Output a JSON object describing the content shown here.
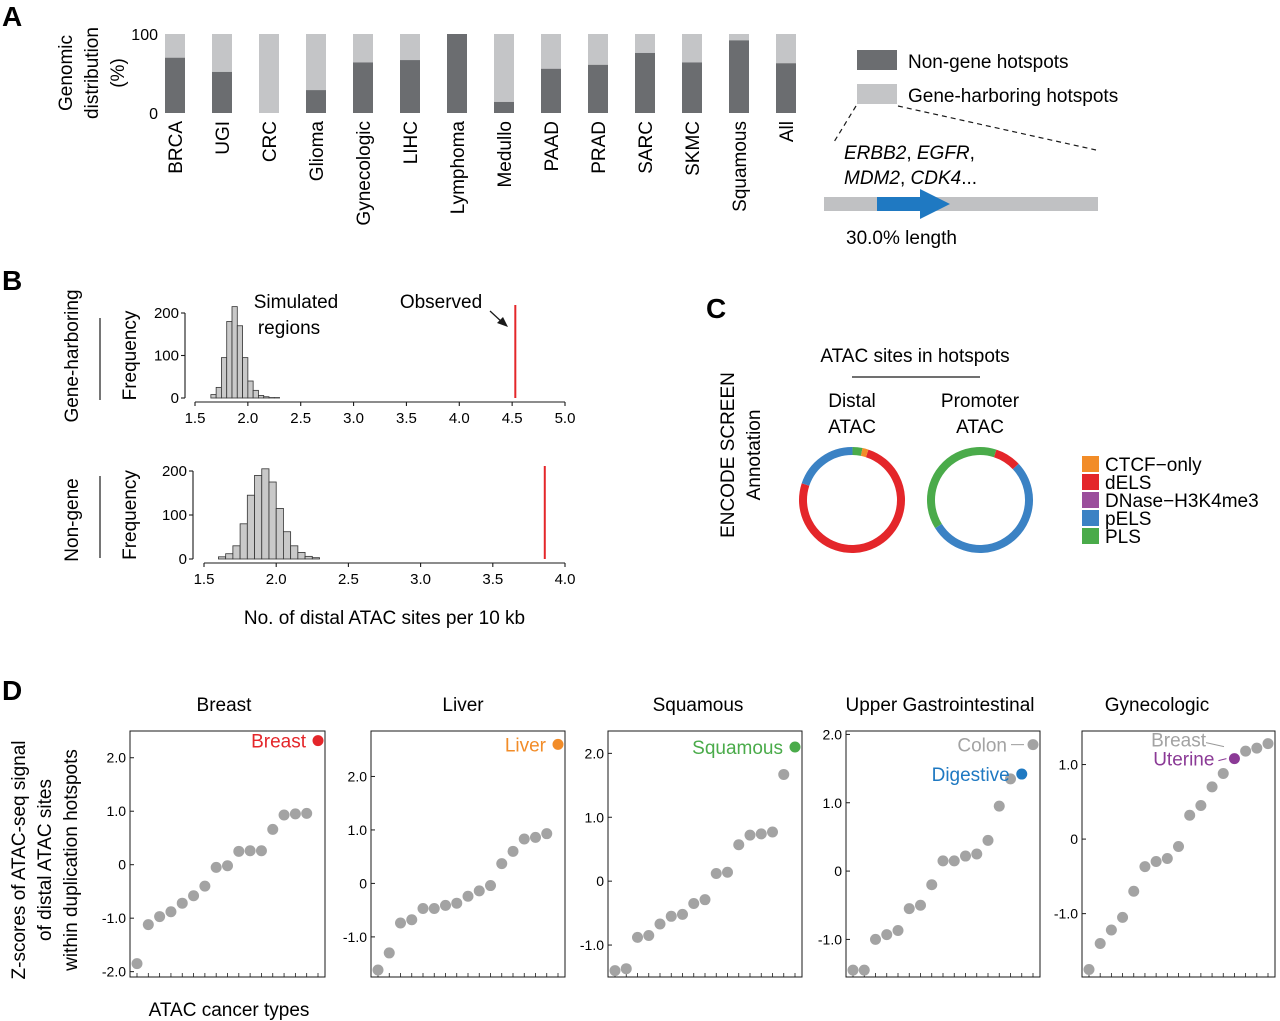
{
  "panel_labels": {
    "a": "A",
    "b": "B",
    "c": "C",
    "d": "D"
  },
  "colors": {
    "non_gene": "#6b6d70",
    "gene": "#c4c5c7",
    "hist_fill": "#c9c9c9",
    "observed": "#e4262a",
    "gene_bar_gray": "#c0c1c3",
    "gene_arrow": "#1f79c2",
    "point_gray": "#a3a3a3"
  },
  "panel_a_gene": {
    "genes_line1_parts": [
      "ERBB2",
      ", ",
      "EGFR",
      ","
    ],
    "genes_line2_parts": [
      "MDM2",
      ", ",
      "CDK4",
      "..."
    ],
    "length_label": "30.0% length"
  },
  "panel_b": {
    "row_labels": [
      "Gene-harboring",
      "Non-gene"
    ],
    "annotations": {
      "simulated_line1": "Simulated",
      "simulated_line2": "regions",
      "observed": "Observed"
    }
  },
  "panel_c": {
    "header": "ATAC sites in hotspots",
    "side_label_line1": "ENCODE SCREEN",
    "side_label_line2": "Annotation",
    "ring_titles": [
      [
        "Distal",
        "ATAC"
      ],
      [
        "Promoter",
        "ATAC"
      ]
    ]
  },
  "panel_d": {
    "ylabel_lines": [
      "Z-scores of ATAC-seq signal",
      "of distal ATAC sites",
      "within duplication hotspots"
    ],
    "xlabel": "ATAC cancer types"
  },
  "chart_data": [
    {
      "id": "A",
      "type": "bar",
      "stacked": true,
      "ylabel": "Genomic distribution (%)",
      "ylim": [
        0,
        100
      ],
      "yticks": [
        0,
        100
      ],
      "categories": [
        "BRCA",
        "UGI",
        "CRC",
        "Glioma",
        "Gynecologic",
        "LIHC",
        "Lymphoma",
        "Medullo",
        "PAAD",
        "PRAD",
        "SARC",
        "SKMC",
        "Squamous",
        "All"
      ],
      "series": [
        {
          "name": "Non-gene hotspots",
          "values": [
            70,
            52,
            0,
            29,
            64,
            67,
            100,
            14,
            56,
            61,
            76,
            64,
            92,
            63
          ]
        },
        {
          "name": "Gene-harboring hotspots",
          "values": [
            30,
            48,
            100,
            71,
            36,
            33,
            0,
            86,
            44,
            39,
            24,
            36,
            8,
            37
          ]
        }
      ],
      "legend_position": "right"
    },
    {
      "id": "B-gene",
      "type": "bar",
      "subtype": "histogram",
      "ylabel": "Frequency",
      "xlim": [
        1.5,
        5.0
      ],
      "xticks": [
        "1.5",
        "2.0",
        "2.5",
        "3.0",
        "3.5",
        "4.0",
        "4.5",
        "5.0"
      ],
      "ylim": [
        0,
        200
      ],
      "yticks": [
        0,
        100,
        200
      ],
      "bin_width": 0.05,
      "bin_starts": [
        1.65,
        1.7,
        1.75,
        1.8,
        1.85,
        1.9,
        1.95,
        2.0,
        2.05,
        2.1,
        2.15,
        2.2,
        2.25
      ],
      "counts": [
        8,
        25,
        95,
        180,
        215,
        170,
        95,
        40,
        18,
        6,
        3,
        1,
        1
      ],
      "observed_value": 4.53
    },
    {
      "id": "B-nongene",
      "type": "bar",
      "subtype": "histogram",
      "ylabel": "Frequency",
      "xlabel": "No. of distal ATAC sites per 10 kb",
      "xlim": [
        1.5,
        4.0
      ],
      "xticks": [
        "1.5",
        "2.0",
        "2.5",
        "3.0",
        "3.5",
        "4.0"
      ],
      "ylim": [
        0,
        200
      ],
      "yticks": [
        0,
        100,
        200
      ],
      "bin_width": 0.05,
      "bin_starts": [
        1.6,
        1.65,
        1.7,
        1.75,
        1.8,
        1.85,
        1.9,
        1.95,
        2.0,
        2.05,
        2.1,
        2.15,
        2.2,
        2.25
      ],
      "counts": [
        5,
        12,
        30,
        80,
        145,
        190,
        205,
        175,
        115,
        62,
        30,
        15,
        6,
        3
      ],
      "observed_value": 3.86
    },
    {
      "id": "C",
      "type": "pie",
      "donut": true,
      "legend": [
        "CTCF−only",
        "dELS",
        "DNase−H3K4me3",
        "pELS",
        "PLS"
      ],
      "legend_colors": [
        "#f28c28",
        "#e4262a",
        "#9b4e9c",
        "#3b82c4",
        "#4aab4a"
      ],
      "pies": [
        {
          "name": "Distal ATAC",
          "values": [
            2,
            75,
            0,
            20,
            3
          ]
        },
        {
          "name": "Promoter ATAC",
          "values": [
            0,
            8,
            0,
            53,
            39
          ]
        }
      ]
    },
    {
      "id": "D",
      "type": "scatter",
      "panels": [
        {
          "title": "Breast",
          "ylim": [
            -2.1,
            2.5
          ],
          "yticks": [
            "-2.0",
            "-1.0",
            "0",
            "1.0",
            "2.0"
          ],
          "ytick_values": [
            -2.0,
            -1.0,
            0,
            1.0,
            2.0
          ],
          "values": [
            -1.85,
            -1.12,
            -0.97,
            -0.88,
            -0.72,
            -0.58,
            -0.4,
            -0.05,
            -0.02,
            0.25,
            0.26,
            0.26,
            0.66,
            0.93,
            0.95,
            0.96,
            2.32
          ],
          "highlight": [
            {
              "index": 16,
              "label": "Breast",
              "color": "#e4262a"
            }
          ]
        },
        {
          "title": "Liver",
          "ylim": [
            -1.75,
            2.85
          ],
          "yticks": [
            "-1.0",
            "0",
            "1.0",
            "2.0"
          ],
          "ytick_values": [
            -1.0,
            0,
            1.0,
            2.0
          ],
          "values": [
            -1.62,
            -1.3,
            -0.74,
            -0.68,
            -0.47,
            -0.47,
            -0.41,
            -0.37,
            -0.24,
            -0.14,
            -0.04,
            0.37,
            0.6,
            0.83,
            0.86,
            0.93,
            2.6
          ],
          "highlight": [
            {
              "index": 16,
              "label": "Liver",
              "color": "#f28c28"
            }
          ]
        },
        {
          "title": "Squamous",
          "ylim": [
            -1.5,
            2.35
          ],
          "yticks": [
            "-1.0",
            "0",
            "1.0",
            "2.0"
          ],
          "ytick_values": [
            -1.0,
            0,
            1.0,
            2.0
          ],
          "values": [
            -1.4,
            -1.37,
            -0.88,
            -0.85,
            -0.67,
            -0.55,
            -0.52,
            -0.35,
            -0.29,
            0.12,
            0.14,
            0.57,
            0.72,
            0.74,
            0.77,
            1.67,
            2.1
          ],
          "highlight": [
            {
              "index": 16,
              "label": "Squamous",
              "color": "#4aab4a"
            }
          ]
        },
        {
          "title": "Upper Gastrointestinal",
          "ylim": [
            -1.55,
            2.05
          ],
          "yticks": [
            "-1.0",
            "0",
            "1.0",
            "2.0"
          ],
          "ytick_values": [
            -1.0,
            0,
            1.0,
            2.0
          ],
          "values": [
            -1.45,
            -1.45,
            -1.0,
            -0.93,
            -0.87,
            -0.55,
            -0.5,
            -0.2,
            0.15,
            0.15,
            0.22,
            0.25,
            0.45,
            0.95,
            1.35,
            1.42,
            1.85
          ],
          "highlight": [
            {
              "index": 16,
              "label": "Colon",
              "color": "#a3a3a3"
            },
            {
              "index": 15,
              "label": "Digestive",
              "color": "#1f79c2"
            }
          ]
        },
        {
          "title": "Gynecologic",
          "ylim": [
            -1.85,
            1.45
          ],
          "yticks": [
            "-1.0",
            "0",
            "1.0"
          ],
          "ytick_values": [
            -1.0,
            0,
            1.0
          ],
          "values": [
            -1.75,
            -1.4,
            -1.22,
            -1.05,
            -0.7,
            -0.37,
            -0.3,
            -0.26,
            -0.1,
            0.32,
            0.45,
            0.7,
            0.88,
            1.08,
            1.18,
            1.22,
            1.28
          ],
          "highlight": [
            {
              "index": 16,
              "label": "Breast",
              "color": "#a3a3a3"
            },
            {
              "index": 13,
              "label": "Uterine",
              "color": "#8b3a96"
            }
          ]
        }
      ]
    }
  ]
}
